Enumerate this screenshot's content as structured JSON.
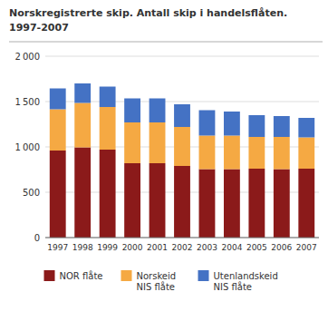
{
  "chart_data": {
    "type": "bar",
    "title": "Norskregistrerte skip. Antall skip i handelsflåten.",
    "subtitle": "1997-2007",
    "categories": [
      "1997",
      "1998",
      "1999",
      "2000",
      "2001",
      "2002",
      "2003",
      "2004",
      "2005",
      "2006",
      "2007"
    ],
    "series": [
      {
        "name": "NOR flåte",
        "color": "#8B1A1A",
        "values": [
          960,
          995,
          970,
          820,
          820,
          790,
          755,
          755,
          760,
          755,
          760
        ]
      },
      {
        "name": "Norskeid\nNIS flåte",
        "color": "#F5A943",
        "values": [
          455,
          490,
          470,
          450,
          450,
          430,
          370,
          370,
          350,
          355,
          345
        ]
      },
      {
        "name": "Utenlandskeid\nNIS flåte",
        "color": "#4472C4",
        "values": [
          230,
          215,
          225,
          265,
          265,
          250,
          280,
          265,
          240,
          230,
          215
        ]
      }
    ],
    "stacked": true,
    "ylim": [
      0,
      2000
    ],
    "yticks": [
      0,
      500,
      {
        "value": 1000,
        "label": "1 000"
      },
      {
        "value": 1500,
        "label": "1 500"
      },
      {
        "value": 2000,
        "label": "2 000"
      }
    ],
    "grid": true,
    "legend": "bottom"
  }
}
